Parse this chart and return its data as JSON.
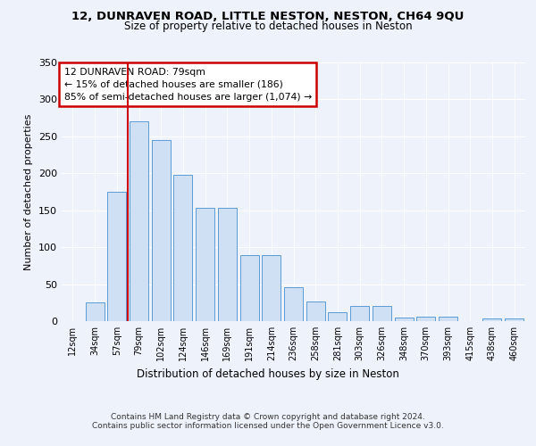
{
  "title1": "12, DUNRAVEN ROAD, LITTLE NESTON, NESTON, CH64 9QU",
  "title2": "Size of property relative to detached houses in Neston",
  "xlabel": "Distribution of detached houses by size in Neston",
  "ylabel": "Number of detached properties",
  "categories": [
    "12sqm",
    "34sqm",
    "57sqm",
    "79sqm",
    "102sqm",
    "124sqm",
    "146sqm",
    "169sqm",
    "191sqm",
    "214sqm",
    "236sqm",
    "258sqm",
    "281sqm",
    "303sqm",
    "326sqm",
    "348sqm",
    "370sqm",
    "393sqm",
    "415sqm",
    "438sqm",
    "460sqm"
  ],
  "values": [
    0,
    25,
    175,
    270,
    245,
    198,
    153,
    153,
    89,
    89,
    46,
    27,
    12,
    21,
    21,
    5,
    6,
    6,
    0,
    4,
    4
  ],
  "bar_color": "#cfe0f5",
  "bar_edge_color": "#5b9bd5",
  "property_bar_index": 3,
  "annotation_text": "12 DUNRAVEN ROAD: 79sqm\n← 15% of detached houses are smaller (186)\n85% of semi-detached houses are larger (1,074) →",
  "vline_color": "#cc0000",
  "box_edge_color": "#cc0000",
  "footer": "Contains HM Land Registry data © Crown copyright and database right 2024.\nContains public sector information licensed under the Open Government Licence v3.0.",
  "ylim": [
    0,
    350
  ],
  "background_color": "#eef2fb"
}
